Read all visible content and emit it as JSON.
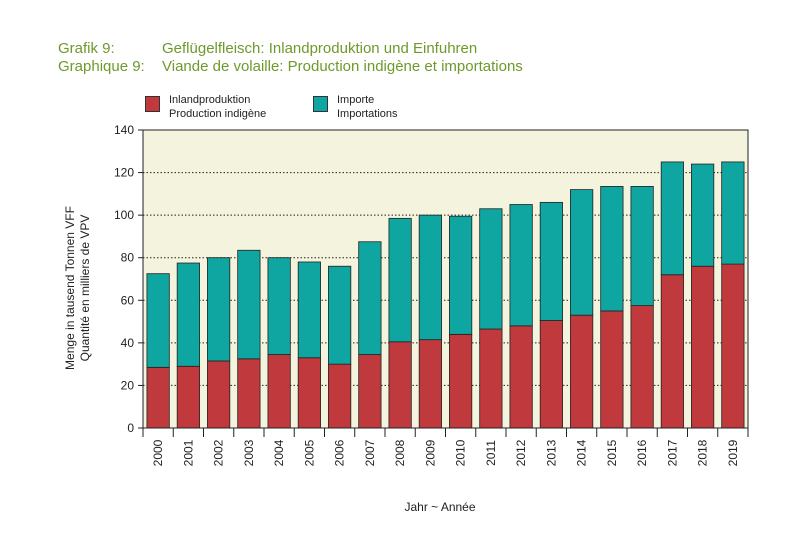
{
  "header": {
    "line1_label": "Grafik 9:",
    "line1_title": "Geflügelfleisch: Inlandproduktion und Einfuhren",
    "line2_label": "Graphique 9:",
    "line2_title": "Viande de volaille: Production indigène et importations"
  },
  "colors": {
    "domestic": "#c0393c",
    "imports": "#0fa5a1",
    "plot_background": "#f4f3dd",
    "title": "#6e9a2c"
  },
  "chart_data": {
    "type": "bar",
    "stacked": true,
    "categories": [
      "2000",
      "2001",
      "2002",
      "2003",
      "2004",
      "2005",
      "2006",
      "2007",
      "2008",
      "2009",
      "2010",
      "2011",
      "2012",
      "2013",
      "2014",
      "2015",
      "2016",
      "2017",
      "2018",
      "2019"
    ],
    "series": [
      {
        "name": "Inlandproduktion / Production indigène",
        "name_de": "Inlandproduktion",
        "name_fr": "Production indigène",
        "color": "#c0393c",
        "values": [
          28.5,
          29,
          31.5,
          32.5,
          34.5,
          33,
          30,
          34.5,
          40.5,
          41.5,
          44,
          46.5,
          48,
          50.5,
          53,
          55,
          57.5,
          72,
          76,
          77
        ]
      },
      {
        "name": "Importe / Importations",
        "name_de": "Importe",
        "name_fr": "Importations",
        "color": "#0fa5a1",
        "values": [
          44,
          48.5,
          48.5,
          51,
          45.5,
          45,
          46,
          53,
          58,
          58.5,
          55.5,
          56.5,
          57,
          55.5,
          59,
          58.5,
          56,
          53,
          48,
          48
        ]
      }
    ],
    "ylim": [
      0,
      140
    ],
    "yticks": [
      0,
      20,
      40,
      60,
      80,
      100,
      120,
      140
    ],
    "ylabel_de": "Menge in tausend Tonnen VFF",
    "ylabel_fr": "Quantité en milliers de VPV",
    "xlabel": "Jahr  ~  Année",
    "grid": "horizontal dotted",
    "legend": "top"
  }
}
